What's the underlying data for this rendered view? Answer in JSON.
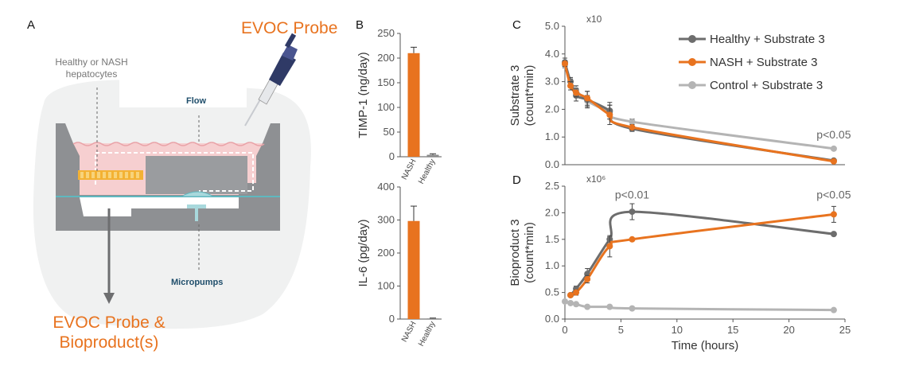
{
  "panel_letters": {
    "a": "A",
    "b": "B",
    "c": "C",
    "d": "D"
  },
  "diagram": {
    "probe_title": "EVOC Probe",
    "cells_label_line1": "Healthy or NASH",
    "cells_label_line2": "hepatocytes",
    "flow_label": "Flow",
    "pumps_label": "Micropumps",
    "output_line1": "EVOC Probe &",
    "output_line2": "Bioproduct(s)",
    "colors": {
      "accent": "#E8731F",
      "chip_gray": "#8e9093",
      "tissue_pink": "#f6cfd0",
      "membrane_teal": "#5fb8bf",
      "cells_yellow": "#f3b234"
    }
  },
  "chart_data": [
    {
      "type": "bar",
      "panel": "B-top",
      "categories": [
        "NASH",
        "Healthy"
      ],
      "values": [
        210,
        4
      ],
      "errors": [
        12,
        2
      ],
      "colors": [
        "#E8731F",
        "#8a8a8a"
      ],
      "ylabel": "TIMP-1 (ng/day)",
      "ylim": [
        0,
        250
      ],
      "yticks": [
        0,
        50,
        100,
        150,
        200,
        250
      ]
    },
    {
      "type": "bar",
      "panel": "B-bottom",
      "categories": [
        "NASH",
        "Healthy"
      ],
      "values": [
        297,
        2
      ],
      "errors": [
        45,
        1
      ],
      "colors": [
        "#E8731F",
        "#8a8a8a"
      ],
      "ylabel": "IL-6 (pg/day)",
      "ylim": [
        0,
        400
      ],
      "yticks": [
        0,
        100,
        200,
        300,
        400
      ]
    },
    {
      "type": "line",
      "panel": "C",
      "multiplier_label": "x10",
      "ylabel_line1": "Substrate 3",
      "ylabel_line2": "(count*min)",
      "ylim": [
        0,
        5
      ],
      "yticks": [
        "0.0",
        "1.0",
        "2.0",
        "3.0",
        "4.0",
        "5.0"
      ],
      "xlim": [
        0,
        25
      ],
      "annotation": {
        "text": "p<0.05",
        "x": 24,
        "y": 0.95
      },
      "legend_position": "top-right",
      "series": [
        {
          "name": "Healthy + Substrate 3",
          "color": "#6d6d6d",
          "x": [
            0,
            0.5,
            1,
            2,
            4,
            6,
            24
          ],
          "y": [
            3.7,
            3.0,
            2.5,
            2.35,
            1.95,
            1.3,
            0.15
          ],
          "err": [
            0.15,
            0.15,
            0.2,
            0.3,
            0.3,
            0.1,
            0.05
          ]
        },
        {
          "name": "NASH + Substrate 3",
          "color": "#E8731F",
          "x": [
            0,
            0.5,
            1,
            2,
            4,
            6,
            24
          ],
          "y": [
            3.65,
            2.85,
            2.6,
            2.4,
            1.8,
            1.35,
            0.12
          ],
          "err": [
            0.1,
            0.15,
            0.15,
            0.25,
            0.35,
            0.1,
            0.05
          ]
        },
        {
          "name": "Control + Substrate 3",
          "color": "#b4b4b4",
          "x": [
            0,
            0.5,
            1,
            2,
            4,
            6,
            24
          ],
          "y": [
            3.6,
            3.0,
            2.7,
            2.3,
            1.9,
            1.55,
            0.58
          ],
          "err": [
            0.1,
            0.1,
            0.15,
            0.2,
            0.25,
            0.1,
            0.05
          ]
        }
      ]
    },
    {
      "type": "line",
      "panel": "D",
      "multiplier_label": "x10⁶",
      "ylabel_line1": "Bioproduct 3",
      "ylabel_line2": "(count*min)",
      "ylim": [
        0,
        2.5
      ],
      "yticks": [
        "0.0",
        "0.5",
        "1.0",
        "1.5",
        "2.0",
        "2.5"
      ],
      "xlim": [
        0,
        25
      ],
      "xticks": [
        0,
        5,
        10,
        15,
        20,
        25
      ],
      "xlabel": "Time (hours)",
      "annotations": [
        {
          "text": "p<0.01",
          "x": 6,
          "y": 2.27
        },
        {
          "text": "p<0.05",
          "x": 24,
          "y": 2.27
        }
      ],
      "series": [
        {
          "name": "Healthy + Substrate 3",
          "color": "#6d6d6d",
          "x": [
            0.5,
            1,
            2,
            4,
            6,
            24
          ],
          "y": [
            0.45,
            0.57,
            0.85,
            1.5,
            2.02,
            1.6
          ],
          "err": [
            0.03,
            0.05,
            0.1,
            0.05,
            0.15,
            0.03
          ]
        },
        {
          "name": "NASH + Substrate 3",
          "color": "#E8731F",
          "x": [
            0.5,
            1,
            2,
            4,
            6,
            24
          ],
          "y": [
            0.45,
            0.5,
            0.75,
            1.37,
            1.5,
            1.97
          ],
          "err": [
            0.03,
            0.05,
            0.07,
            0.2,
            0.02,
            0.15
          ]
        },
        {
          "name": "Control + Substrate 3",
          "color": "#b4b4b4",
          "x": [
            0,
            0.5,
            1,
            2,
            4,
            6,
            24
          ],
          "y": [
            0.33,
            0.3,
            0.28,
            0.23,
            0.23,
            0.2,
            0.17
          ],
          "err": [
            0.02,
            0.02,
            0.02,
            0.02,
            0.02,
            0.02,
            0.02
          ]
        }
      ]
    }
  ]
}
